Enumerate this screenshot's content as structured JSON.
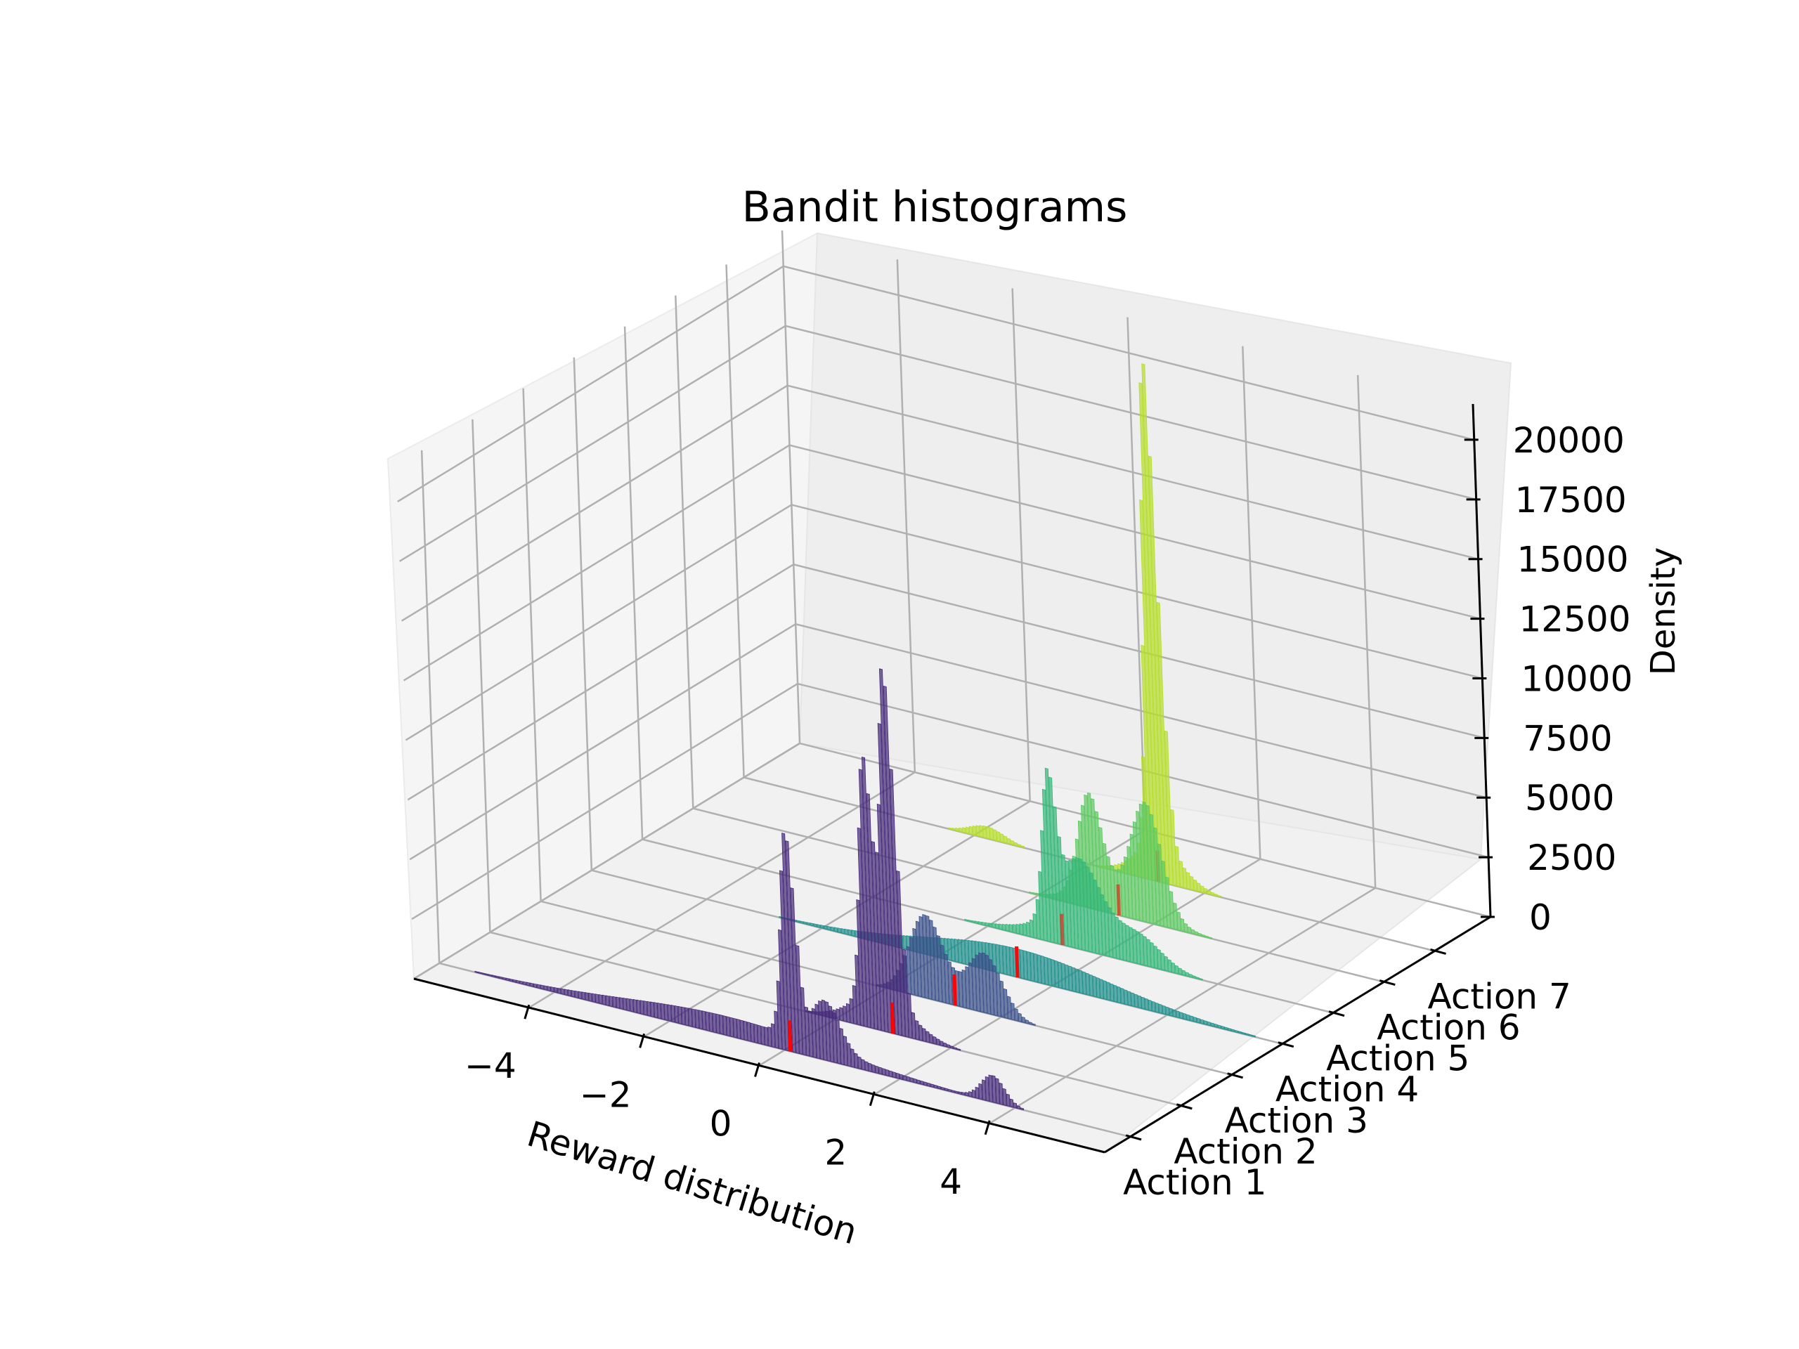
{
  "chart_data": {
    "type": "bar",
    "projection": "3d",
    "title": "Bandit histograms",
    "xlabel": "Reward distribution",
    "zlabel": "Density",
    "xticks": [
      "−4",
      "−2",
      "0",
      "2",
      "4"
    ],
    "xtick_values": [
      -4,
      -2,
      0,
      2,
      4
    ],
    "xlim": [
      -6,
      6
    ],
    "yticks": [
      "Action 1",
      "Action 2",
      "Action 3",
      "Action 4",
      "Action 5",
      "Action 6",
      "Action 7"
    ],
    "zticks": [
      "0",
      "2500",
      "5000",
      "7500",
      "10000",
      "12500",
      "15000",
      "17500",
      "20000"
    ],
    "ztick_values": [
      0,
      2500,
      5000,
      7500,
      10000,
      12500,
      15000,
      17500,
      20000
    ],
    "zlim": [
      0,
      21500
    ],
    "grid": true,
    "mean_marker_color": "#ff0000",
    "series": [
      {
        "action": 1,
        "color": "#472c7a",
        "mean": 0.1,
        "components": [
          {
            "center": 0.1,
            "sigma": 0.12,
            "peak": 8500
          },
          {
            "center": 0.7,
            "sigma": 0.25,
            "peak": 2000
          },
          {
            "center": -1.0,
            "sigma": 1.8,
            "peak": 800
          },
          {
            "center": 3.6,
            "sigma": 0.2,
            "peak": 1100
          }
        ]
      },
      {
        "action": 2,
        "color": "#472c7a",
        "mean": 1.0,
        "components": [
          {
            "center": 0.6,
            "sigma": 0.12,
            "peak": 10000
          },
          {
            "center": 1.0,
            "sigma": 0.12,
            "peak": 14000
          },
          {
            "center": 0.8,
            "sigma": 0.5,
            "peak": 1500
          }
        ]
      },
      {
        "action": 3,
        "color": "#3b528b",
        "mean": 1.2,
        "components": [
          {
            "center": 0.7,
            "sigma": 0.3,
            "peak": 3500
          },
          {
            "center": 1.7,
            "sigma": 0.3,
            "peak": 2500
          }
        ]
      },
      {
        "action": 4,
        "color": "#21908d",
        "mean": 1.4,
        "components": [
          {
            "center": 1.4,
            "sigma": 1.6,
            "peak": 1200
          }
        ]
      },
      {
        "action": 5,
        "color": "#35b779",
        "mean": 1.3,
        "components": [
          {
            "center": 1.1,
            "sigma": 0.12,
            "peak": 5500
          },
          {
            "center": 1.6,
            "sigma": 0.35,
            "peak": 3000
          },
          {
            "center": 2.6,
            "sigma": 0.4,
            "peak": 1000
          },
          {
            "center": 1.5,
            "sigma": 0.8,
            "peak": 800
          }
        ]
      },
      {
        "action": 6,
        "color": "#5ec962",
        "mean": 1.4,
        "components": [
          {
            "center": 0.9,
            "sigma": 0.2,
            "peak": 4000
          },
          {
            "center": 1.9,
            "sigma": 0.25,
            "peak": 4200
          },
          {
            "center": 1.4,
            "sigma": 0.6,
            "peak": 1200
          }
        ]
      },
      {
        "action": 7,
        "color": "#b5de2b",
        "mean": 1.2,
        "components": [
          {
            "center": 1.2,
            "sigma": 0.12,
            "peak": 20500
          },
          {
            "center": -1.8,
            "sigma": 0.3,
            "peak": 500
          },
          {
            "center": 1.2,
            "sigma": 0.4,
            "peak": 1500
          }
        ]
      }
    ]
  }
}
